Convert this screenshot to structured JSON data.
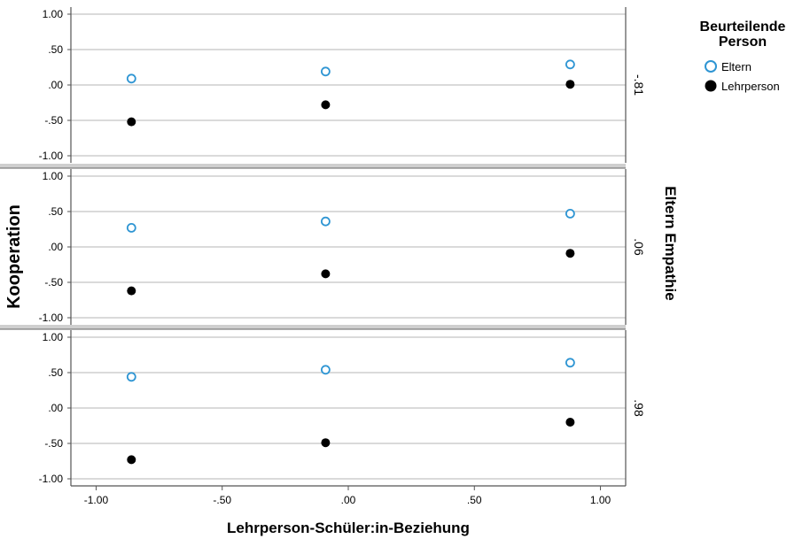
{
  "chart_data": {
    "type": "scatter",
    "xlabel": "Lehrperson-Schüler:in-Beziehung",
    "ylabel": "Kooperation",
    "xlim": [
      -1.1,
      1.1
    ],
    "ylim": [
      -1.1,
      1.1
    ],
    "x_ticks": [
      "-1.00",
      "-.50",
      ".00",
      ".50",
      "1.00"
    ],
    "x_tick_values": [
      -1.0,
      -0.5,
      0.0,
      0.5,
      1.0
    ],
    "y_ticks": [
      "1.00",
      ".50",
      ".00",
      "-.50",
      "-1.00"
    ],
    "y_tick_values": [
      1.0,
      0.5,
      0.0,
      -0.5,
      -1.0
    ],
    "grid": "horizontal",
    "facet_title": "Eltern Empathie",
    "legend": {
      "title": "Beurteilende Person",
      "position": "top-right",
      "entries": [
        {
          "label": "Eltern",
          "color": "#2e95d3",
          "marker": "open-circle"
        },
        {
          "label": "Lehrperson",
          "color": "#000000",
          "marker": "filled-circle"
        }
      ]
    },
    "x": [
      -0.86,
      -0.09,
      0.88
    ],
    "panels": [
      {
        "label": "-.81",
        "series": [
          {
            "name": "Eltern",
            "values": [
              0.09,
              0.19,
              0.29
            ]
          },
          {
            "name": "Lehrperson",
            "values": [
              -0.52,
              -0.28,
              0.01
            ]
          }
        ]
      },
      {
        "label": ".06",
        "series": [
          {
            "name": "Eltern",
            "values": [
              0.27,
              0.36,
              0.47
            ]
          },
          {
            "name": "Lehrperson",
            "values": [
              -0.62,
              -0.38,
              -0.09
            ]
          }
        ]
      },
      {
        "label": ".98",
        "series": [
          {
            "name": "Eltern",
            "values": [
              0.44,
              0.54,
              0.64
            ]
          },
          {
            "name": "Lehrperson",
            "values": [
              -0.73,
              -0.49,
              -0.2
            ]
          }
        ]
      }
    ]
  }
}
